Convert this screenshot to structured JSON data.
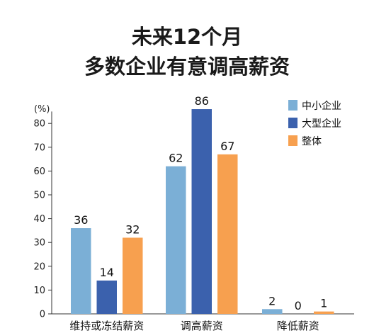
{
  "chart_data": {
    "type": "bar",
    "title": [
      "未来12个月",
      "多数企业有意调高薪资"
    ],
    "ylabel": "(%)",
    "ylim": [
      0,
      85
    ],
    "yticks": [
      0,
      10,
      20,
      30,
      40,
      50,
      60,
      70,
      80
    ],
    "categories": [
      "维持或冻结薪资",
      "调高薪资",
      "降低薪资"
    ],
    "series": [
      {
        "name": "中小企业",
        "color": "#7bafd6",
        "values": [
          36,
          62,
          2
        ]
      },
      {
        "name": "大型企业",
        "color": "#3b61ad",
        "values": [
          14,
          86,
          0
        ]
      },
      {
        "name": "整体",
        "color": "#f7a04f",
        "values": [
          32,
          67,
          1
        ]
      }
    ],
    "legend_position": "top-right",
    "grid": false
  }
}
